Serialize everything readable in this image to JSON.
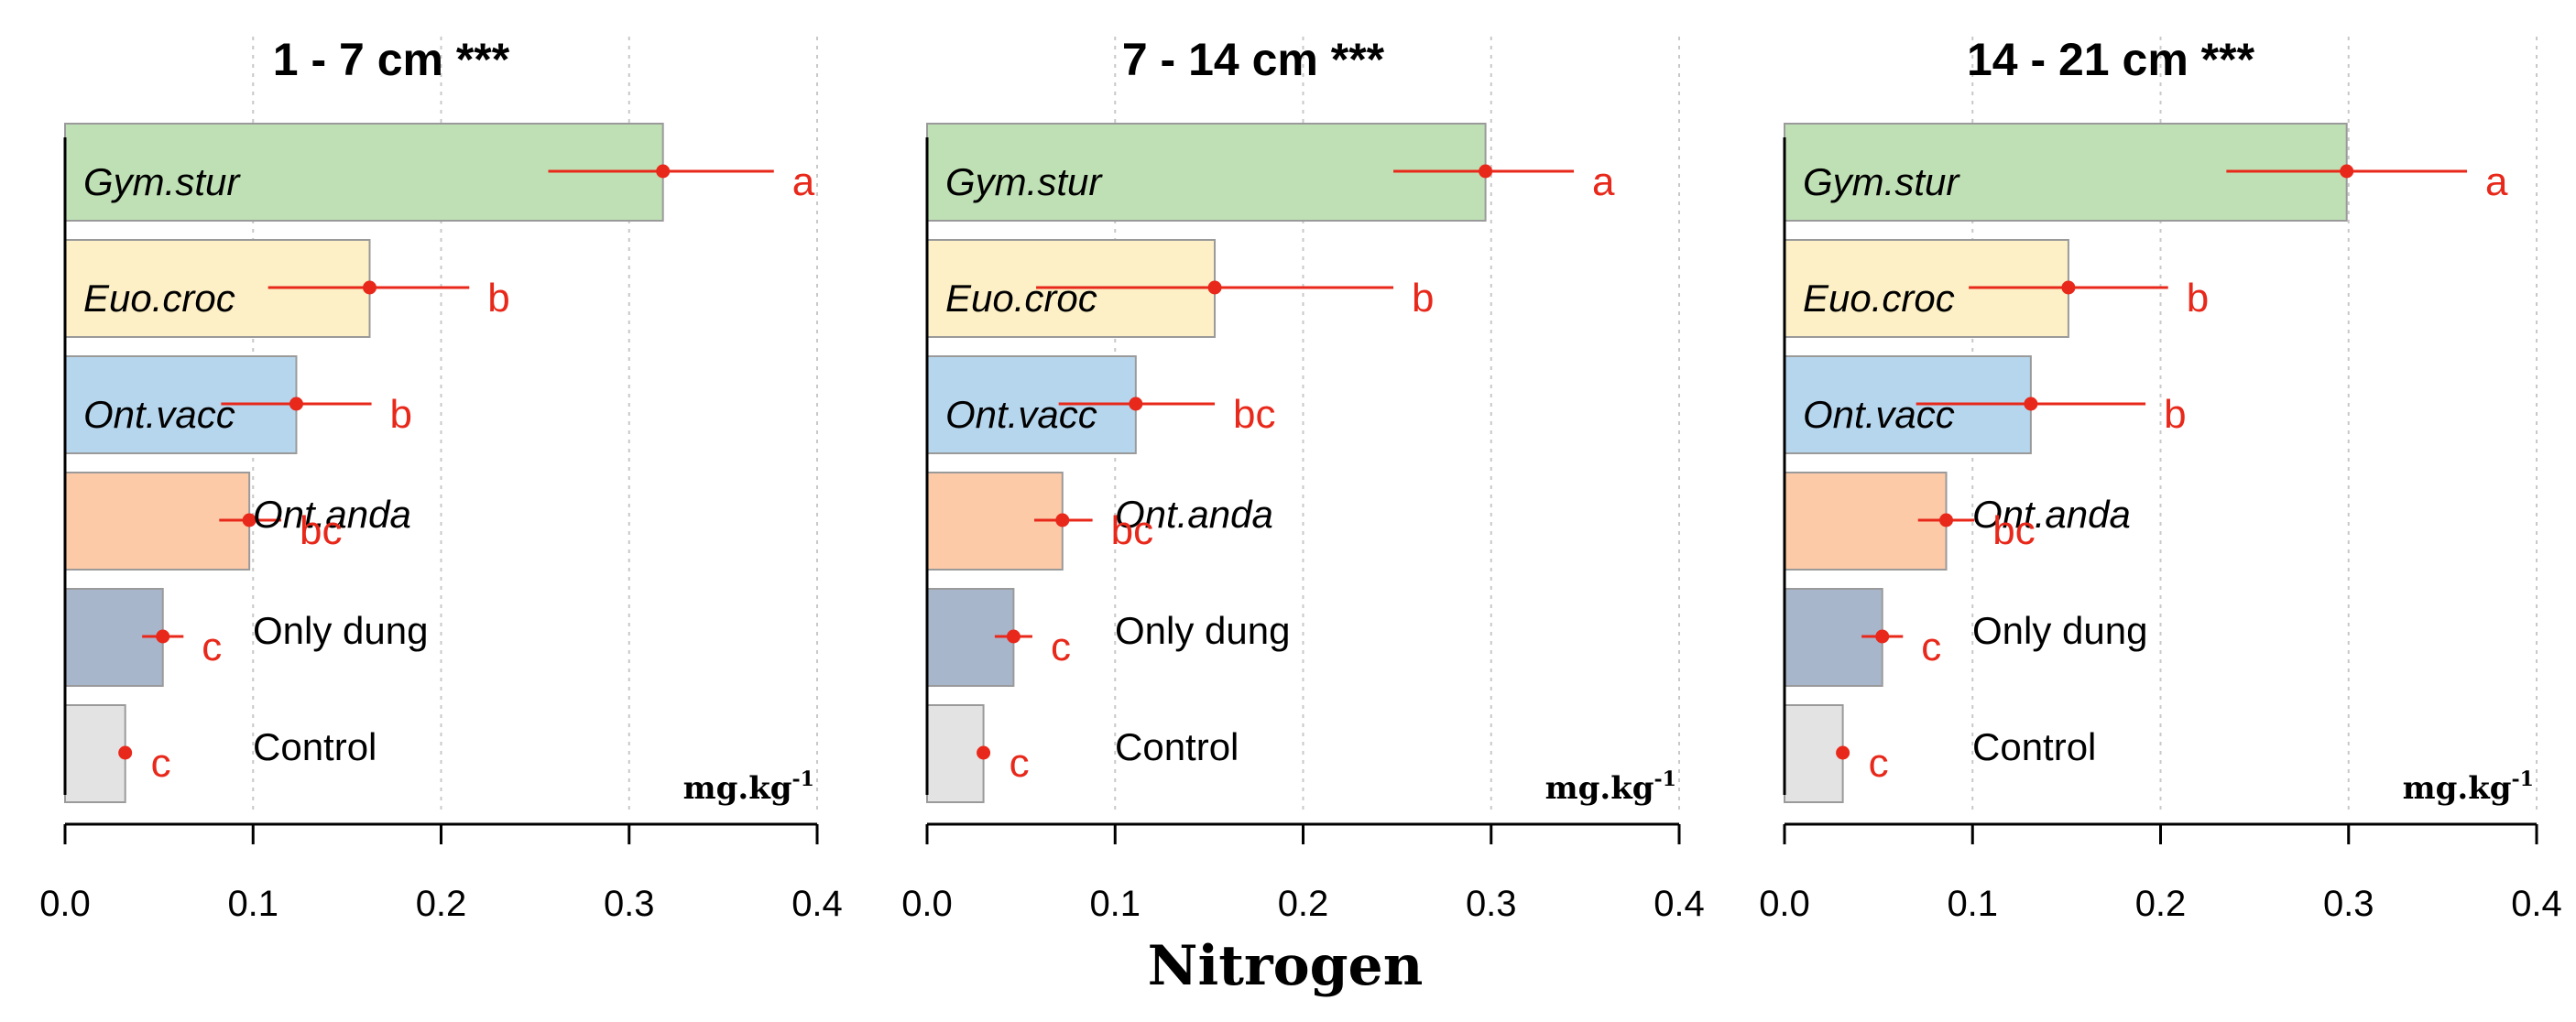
{
  "chart_data": {
    "type": "bar",
    "orientation": "horizontal",
    "xlabel": "Nitrogen",
    "unit": {
      "base": "mg.kg",
      "sup": "-1"
    },
    "xlim": [
      0,
      0.4
    ],
    "xticks": [
      0.0,
      0.1,
      0.2,
      0.3,
      0.4
    ],
    "xtick_labels": [
      "0.0",
      "0.1",
      "0.2",
      "0.3",
      "0.4"
    ],
    "grid": "vertical dotted",
    "colors": {
      "Gym.stur": "#bfe0b4",
      "Euo.croc": "#fdf0c6",
      "Ont.vacc": "#b6d6ee",
      "Ont.anda": "#fdcaa8",
      "Only dung": "#a8b6cc",
      "Control": "#e3e3e3",
      "point": "#e8281a",
      "errorbar": "#e8281a",
      "letters": "#e8281a"
    },
    "panels": [
      {
        "title": "1 - 7 cm ***",
        "bars": [
          {
            "label": "Gym.stur",
            "italic": true,
            "mean": 0.318,
            "lo": 0.257,
            "hi": 0.377,
            "letter": "a",
            "label_pos": "inside"
          },
          {
            "label": "Euo.croc",
            "italic": true,
            "mean": 0.162,
            "lo": 0.108,
            "hi": 0.215,
            "letter": "b",
            "label_pos": "inside"
          },
          {
            "label": "Ont.vacc",
            "italic": true,
            "mean": 0.123,
            "lo": 0.083,
            "hi": 0.163,
            "letter": "b",
            "label_pos": "inside"
          },
          {
            "label": "Ont.anda",
            "italic": true,
            "mean": 0.098,
            "lo": 0.082,
            "hi": 0.115,
            "letter": "bc",
            "label_pos": "outside"
          },
          {
            "label": "Only dung",
            "italic": false,
            "mean": 0.052,
            "lo": 0.041,
            "hi": 0.063,
            "letter": "c",
            "label_pos": "outside"
          },
          {
            "label": "Control",
            "italic": false,
            "mean": 0.032,
            "lo": 0.032,
            "hi": 0.032,
            "letter": "c",
            "label_pos": "outside"
          }
        ]
      },
      {
        "title": "7 - 14 cm ***",
        "bars": [
          {
            "label": "Gym.stur",
            "italic": true,
            "mean": 0.297,
            "lo": 0.248,
            "hi": 0.344,
            "letter": "a",
            "label_pos": "inside"
          },
          {
            "label": "Euo.croc",
            "italic": true,
            "mean": 0.153,
            "lo": 0.058,
            "hi": 0.248,
            "letter": "b",
            "label_pos": "inside"
          },
          {
            "label": "Ont.vacc",
            "italic": true,
            "mean": 0.111,
            "lo": 0.07,
            "hi": 0.153,
            "letter": "bc",
            "label_pos": "inside"
          },
          {
            "label": "Ont.anda",
            "italic": true,
            "mean": 0.072,
            "lo": 0.057,
            "hi": 0.088,
            "letter": "bc",
            "label_pos": "outside"
          },
          {
            "label": "Only dung",
            "italic": false,
            "mean": 0.046,
            "lo": 0.036,
            "hi": 0.056,
            "letter": "c",
            "label_pos": "outside"
          },
          {
            "label": "Control",
            "italic": false,
            "mean": 0.03,
            "lo": 0.03,
            "hi": 0.03,
            "letter": "c",
            "label_pos": "outside"
          }
        ]
      },
      {
        "title": "14 - 21 cm ***",
        "bars": [
          {
            "label": "Gym.stur",
            "italic": true,
            "mean": 0.299,
            "lo": 0.235,
            "hi": 0.363,
            "letter": "a",
            "label_pos": "inside"
          },
          {
            "label": "Euo.croc",
            "italic": true,
            "mean": 0.151,
            "lo": 0.098,
            "hi": 0.204,
            "letter": "b",
            "label_pos": "inside"
          },
          {
            "label": "Ont.vacc",
            "italic": true,
            "mean": 0.131,
            "lo": 0.07,
            "hi": 0.192,
            "letter": "b",
            "label_pos": "inside"
          },
          {
            "label": "Ont.anda",
            "italic": true,
            "mean": 0.086,
            "lo": 0.071,
            "hi": 0.101,
            "letter": "bc",
            "label_pos": "outside"
          },
          {
            "label": "Only dung",
            "italic": false,
            "mean": 0.052,
            "lo": 0.041,
            "hi": 0.063,
            "letter": "c",
            "label_pos": "outside"
          },
          {
            "label": "Control",
            "italic": false,
            "mean": 0.031,
            "lo": 0.031,
            "hi": 0.031,
            "letter": "c",
            "label_pos": "outside"
          }
        ]
      }
    ]
  }
}
